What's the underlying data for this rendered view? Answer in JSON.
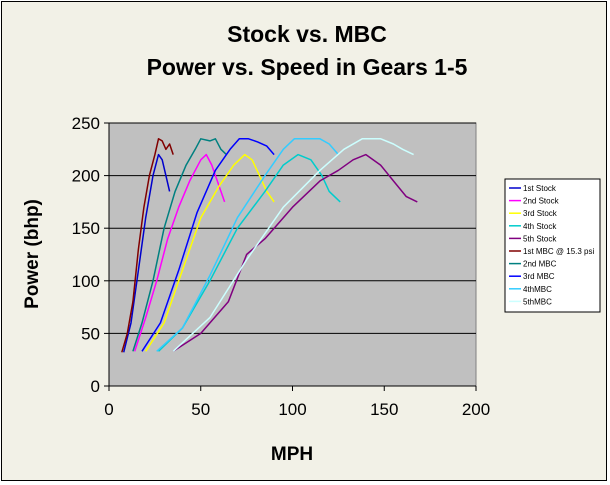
{
  "chart_data": {
    "type": "line",
    "title": "Stock vs. MBC",
    "subtitle": "Power vs. Speed in Gears 1-5",
    "xlabel": "MPH",
    "ylabel": "Power (bhp)",
    "xlim": [
      0,
      200
    ],
    "ylim": [
      0,
      250
    ],
    "xticks": [
      "0",
      "50",
      "100",
      "150",
      "200"
    ],
    "yticks": [
      "0",
      "50",
      "100",
      "150",
      "200",
      "250"
    ],
    "grid": "horizontal",
    "legend_position": "right",
    "series": [
      {
        "name": "1st Stock",
        "color": "#0000cc",
        "x": [
          8,
          12,
          16,
          20,
          24,
          27,
          29,
          31,
          33
        ],
        "y": [
          32,
          60,
          110,
          160,
          200,
          220,
          215,
          200,
          185
        ]
      },
      {
        "name": "2nd Stock",
        "color": "#ff00ff",
        "x": [
          14,
          20,
          26,
          32,
          38,
          44,
          50,
          53,
          56,
          60,
          63
        ],
        "y": [
          33,
          65,
          100,
          140,
          170,
          195,
          215,
          220,
          210,
          190,
          175
        ]
      },
      {
        "name": "3rd Stock",
        "color": "#ffff00",
        "x": [
          20,
          30,
          40,
          50,
          60,
          68,
          74,
          78,
          82,
          86,
          90
        ],
        "y": [
          33,
          60,
          110,
          160,
          190,
          210,
          220,
          215,
          200,
          185,
          175
        ]
      },
      {
        "name": "4th Stock",
        "color": "#00cccc",
        "x": [
          27,
          40,
          55,
          70,
          85,
          95,
          103,
          110,
          116,
          120,
          126
        ],
        "y": [
          33,
          55,
          100,
          150,
          185,
          210,
          220,
          215,
          200,
          185,
          175
        ]
      },
      {
        "name": "5th Stock",
        "color": "#800080",
        "x": [
          35,
          50,
          65,
          75,
          85,
          100,
          115,
          125,
          133,
          140,
          148,
          155,
          162,
          168
        ],
        "y": [
          33,
          50,
          80,
          125,
          140,
          170,
          195,
          205,
          215,
          220,
          210,
          195,
          180,
          175
        ]
      },
      {
        "name": "1st MBC @ 15.3 psi",
        "color": "#800000",
        "x": [
          7,
          10,
          13,
          16,
          19,
          22,
          25,
          27,
          29,
          31,
          33,
          35
        ],
        "y": [
          32,
          50,
          80,
          130,
          170,
          200,
          220,
          235,
          233,
          225,
          230,
          220
        ]
      },
      {
        "name": "2nd MBC",
        "color": "#008080",
        "x": [
          13,
          18,
          24,
          30,
          36,
          42,
          47,
          50,
          55,
          58,
          61,
          64
        ],
        "y": [
          33,
          60,
          100,
          150,
          185,
          210,
          225,
          235,
          233,
          235,
          225,
          220
        ]
      },
      {
        "name": "3rd MBC",
        "color": "#0000ff",
        "x": [
          18,
          28,
          38,
          48,
          58,
          66,
          71,
          76,
          81,
          86,
          90
        ],
        "y": [
          33,
          60,
          110,
          165,
          205,
          225,
          235,
          235,
          232,
          228,
          220
        ]
      },
      {
        "name": "4thMBC",
        "color": "#33ccff",
        "x": [
          26,
          40,
          55,
          70,
          85,
          95,
          101,
          108,
          115,
          120,
          125
        ],
        "y": [
          33,
          55,
          105,
          160,
          200,
          225,
          235,
          235,
          235,
          230,
          220
        ]
      },
      {
        "name": "5thMBC",
        "color": "#ccffff",
        "x": [
          35,
          55,
          75,
          95,
          115,
          128,
          138,
          148,
          155,
          160,
          166
        ],
        "y": [
          33,
          65,
          120,
          170,
          205,
          225,
          235,
          235,
          230,
          225,
          220
        ]
      }
    ]
  }
}
